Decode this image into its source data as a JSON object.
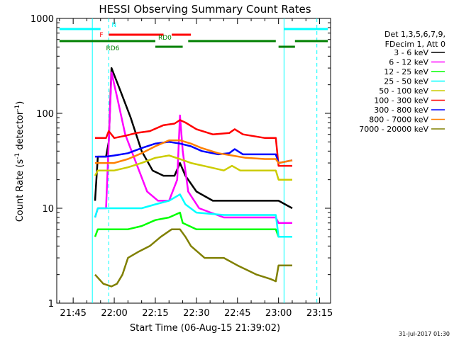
{
  "chart_data": {
    "type": "line",
    "title": "HESSI Observing Summary Count Rates",
    "xlabel": "Start Time (06-Aug-15 21:39:02)",
    "ylabel": "Count Rate (s",
    "ylabel_sup": "-1",
    "ylabel_mid": " detector",
    "ylabel_end": ")",
    "y_scale": "log",
    "ylim": [
      1,
      1000
    ],
    "y_ticks": [
      {
        "v": 1,
        "label": "1"
      },
      {
        "v": 10,
        "label": "10"
      },
      {
        "v": 100,
        "label": "100"
      },
      {
        "v": 1000,
        "label": "1000"
      }
    ],
    "xlim": [
      "21:39",
      "23:19"
    ],
    "x_ticks": [
      "21:45",
      "22:00",
      "22:15",
      "22:30",
      "22:45",
      "23:00",
      "23:15"
    ],
    "legend": {
      "position": "right",
      "header": [
        "Det 1,3,5,6,7,9,",
        "FDecim 1, Att 0"
      ],
      "entries": [
        {
          "label": "3 - 6 keV",
          "color": "#000000"
        },
        {
          "label": "6 - 12 keV",
          "color": "#ff00ff"
        },
        {
          "label": "12 - 25 keV",
          "color": "#00ff00"
        },
        {
          "label": "25 - 50 keV",
          "color": "#00ffff"
        },
        {
          "label": "50 - 100 keV",
          "color": "#cccc00"
        },
        {
          "label": "100 - 300 keV",
          "color": "#ff0000"
        },
        {
          "label": "300 - 800 keV",
          "color": "#0000ff"
        },
        {
          "label": "800 - 7000 keV",
          "color": "#ff8000"
        },
        {
          "label": "7000 - 20000 keV",
          "color": "#808000"
        }
      ]
    },
    "night_markers": [
      {
        "x": "21:52",
        "style": "solid"
      },
      {
        "x": "21:58",
        "style": "dashed"
      },
      {
        "x": "23:02",
        "style": "solid"
      },
      {
        "x": "23:14",
        "style": "dashed"
      }
    ],
    "flag_bars": [
      {
        "label": "N",
        "color": "#00ffff",
        "segments": [
          [
            "21:40",
            "21:55"
          ],
          [
            "23:02",
            "23:18"
          ]
        ]
      },
      {
        "label": "F",
        "color": "#ff0000",
        "segments": [
          [
            "21:58",
            "22:18"
          ],
          [
            "22:21",
            "22:28"
          ]
        ]
      },
      {
        "label": "RD0",
        "color": "#008000",
        "segments": [
          [
            "21:40",
            "22:15"
          ],
          [
            "22:27",
            "22:59"
          ],
          [
            "23:06",
            "23:18"
          ]
        ]
      },
      {
        "label": "RD6",
        "color": "#008000",
        "segments": [
          [
            "22:15",
            "22:25"
          ],
          [
            "23:00",
            "23:06"
          ]
        ]
      }
    ],
    "series": [
      {
        "name": "3 - 6 keV",
        "color": "#000000",
        "points": [
          [
            "21:53",
            12
          ],
          [
            "21:54",
            35
          ],
          [
            "21:57",
            35
          ],
          [
            "21:58",
            50
          ],
          [
            "21:59",
            300
          ],
          [
            "22:02",
            180
          ],
          [
            "22:06",
            90
          ],
          [
            "22:10",
            40
          ],
          [
            "22:14",
            25
          ],
          [
            "22:18",
            22
          ],
          [
            "22:22",
            22
          ],
          [
            "22:24",
            30
          ],
          [
            "22:26",
            22
          ],
          [
            "22:30",
            15
          ],
          [
            "22:36",
            12
          ],
          [
            "22:45",
            12
          ],
          [
            "22:55",
            12
          ],
          [
            "23:00",
            12
          ],
          [
            "23:05",
            10
          ]
        ]
      },
      {
        "name": "6 - 12 keV",
        "color": "#ff00ff",
        "points": [
          [
            "21:53",
            8
          ],
          [
            "21:54",
            10
          ],
          [
            "21:57",
            10
          ],
          [
            "21:58",
            50
          ],
          [
            "21:59",
            270
          ],
          [
            "22:01",
            150
          ],
          [
            "22:04",
            60
          ],
          [
            "22:08",
            30
          ],
          [
            "22:12",
            15
          ],
          [
            "22:16",
            12
          ],
          [
            "22:20",
            12
          ],
          [
            "22:23",
            20
          ],
          [
            "22:24",
            95
          ],
          [
            "22:25",
            40
          ],
          [
            "22:27",
            15
          ],
          [
            "22:31",
            10
          ],
          [
            "22:40",
            8
          ],
          [
            "22:50",
            8
          ],
          [
            "22:59",
            8
          ],
          [
            "23:00",
            7
          ],
          [
            "23:05",
            7
          ]
        ]
      },
      {
        "name": "12 - 25 keV",
        "color": "#00ff00",
        "points": [
          [
            "21:53",
            5
          ],
          [
            "21:54",
            6
          ],
          [
            "21:57",
            6
          ],
          [
            "22:00",
            6
          ],
          [
            "22:05",
            6
          ],
          [
            "22:10",
            6.5
          ],
          [
            "22:15",
            7.5
          ],
          [
            "22:20",
            8
          ],
          [
            "22:24",
            9
          ],
          [
            "22:25",
            7
          ],
          [
            "22:30",
            6
          ],
          [
            "22:40",
            6
          ],
          [
            "22:50",
            6
          ],
          [
            "22:59",
            6
          ],
          [
            "23:00",
            5
          ],
          [
            "23:05",
            5
          ]
        ]
      },
      {
        "name": "25 - 50 keV",
        "color": "#00ffff",
        "points": [
          [
            "21:53",
            8
          ],
          [
            "21:54",
            10
          ],
          [
            "21:57",
            10
          ],
          [
            "22:00",
            10
          ],
          [
            "22:05",
            10
          ],
          [
            "22:10",
            10
          ],
          [
            "22:15",
            11
          ],
          [
            "22:20",
            12
          ],
          [
            "22:24",
            14
          ],
          [
            "22:26",
            11
          ],
          [
            "22:30",
            9
          ],
          [
            "22:40",
            8.5
          ],
          [
            "22:50",
            8.5
          ],
          [
            "22:59",
            8.5
          ],
          [
            "23:00",
            5
          ],
          [
            "23:05",
            5
          ]
        ]
      },
      {
        "name": "50 - 100 keV",
        "color": "#cccc00",
        "points": [
          [
            "21:53",
            22
          ],
          [
            "21:54",
            25
          ],
          [
            "21:57",
            25
          ],
          [
            "22:00",
            25
          ],
          [
            "22:05",
            27
          ],
          [
            "22:10",
            30
          ],
          [
            "22:15",
            34
          ],
          [
            "22:20",
            36
          ],
          [
            "22:24",
            33
          ],
          [
            "22:28",
            30
          ],
          [
            "22:35",
            27
          ],
          [
            "22:40",
            25
          ],
          [
            "22:43",
            28
          ],
          [
            "22:46",
            25
          ],
          [
            "22:50",
            25
          ],
          [
            "22:59",
            25
          ],
          [
            "23:00",
            20
          ],
          [
            "23:05",
            20
          ]
        ]
      },
      {
        "name": "100 - 300 keV",
        "color": "#ff0000",
        "points": [
          [
            "21:53",
            55
          ],
          [
            "21:54",
            55
          ],
          [
            "21:57",
            55
          ],
          [
            "21:58",
            65
          ],
          [
            "22:00",
            55
          ],
          [
            "22:04",
            58
          ],
          [
            "22:08",
            62
          ],
          [
            "22:13",
            65
          ],
          [
            "22:18",
            75
          ],
          [
            "22:22",
            78
          ],
          [
            "22:24",
            85
          ],
          [
            "22:26",
            80
          ],
          [
            "22:30",
            68
          ],
          [
            "22:36",
            60
          ],
          [
            "22:42",
            62
          ],
          [
            "22:44",
            68
          ],
          [
            "22:47",
            60
          ],
          [
            "22:55",
            55
          ],
          [
            "22:59",
            55
          ],
          [
            "23:00",
            28
          ],
          [
            "23:05",
            28
          ]
        ]
      },
      {
        "name": "300 - 800 keV",
        "color": "#0000ff",
        "points": [
          [
            "21:53",
            35
          ],
          [
            "21:54",
            35
          ],
          [
            "21:57",
            35
          ],
          [
            "22:00",
            36
          ],
          [
            "22:05",
            38
          ],
          [
            "22:10",
            43
          ],
          [
            "22:15",
            48
          ],
          [
            "22:20",
            50
          ],
          [
            "22:24",
            48
          ],
          [
            "22:28",
            45
          ],
          [
            "22:32",
            40
          ],
          [
            "22:38",
            37
          ],
          [
            "22:42",
            38
          ],
          [
            "22:44",
            42
          ],
          [
            "22:47",
            37
          ],
          [
            "22:55",
            37
          ],
          [
            "22:59",
            37
          ],
          [
            "23:00",
            30
          ],
          [
            "23:05",
            32
          ]
        ]
      },
      {
        "name": "800 - 7000 keV",
        "color": "#ff8000",
        "points": [
          [
            "21:53",
            30
          ],
          [
            "21:54",
            30
          ],
          [
            "21:57",
            30
          ],
          [
            "22:00",
            30
          ],
          [
            "22:05",
            33
          ],
          [
            "22:10",
            38
          ],
          [
            "22:15",
            45
          ],
          [
            "22:20",
            52
          ],
          [
            "22:24",
            52
          ],
          [
            "22:28",
            48
          ],
          [
            "22:32",
            43
          ],
          [
            "22:38",
            38
          ],
          [
            "22:43",
            36
          ],
          [
            "22:48",
            34
          ],
          [
            "22:55",
            33
          ],
          [
            "22:59",
            33
          ],
          [
            "23:00",
            30
          ],
          [
            "23:05",
            32
          ]
        ]
      },
      {
        "name": "7000 - 20000 keV",
        "color": "#808000",
        "points": [
          [
            "21:53",
            2
          ],
          [
            "21:56",
            1.6
          ],
          [
            "21:59",
            1.5
          ],
          [
            "22:01",
            1.6
          ],
          [
            "22:03",
            2
          ],
          [
            "22:05",
            3
          ],
          [
            "22:09",
            3.5
          ],
          [
            "22:13",
            4
          ],
          [
            "22:17",
            5
          ],
          [
            "22:21",
            6
          ],
          [
            "22:24",
            6
          ],
          [
            "22:26",
            5
          ],
          [
            "22:28",
            4
          ],
          [
            "22:33",
            3
          ],
          [
            "22:40",
            3
          ],
          [
            "22:45",
            2.5
          ],
          [
            "22:52",
            2
          ],
          [
            "22:57",
            1.8
          ],
          [
            "22:59",
            1.7
          ],
          [
            "23:00",
            2.5
          ],
          [
            "23:05",
            2.5
          ]
        ]
      }
    ]
  },
  "footer": {
    "timestamp": "31-Jul-2017 01:30"
  }
}
